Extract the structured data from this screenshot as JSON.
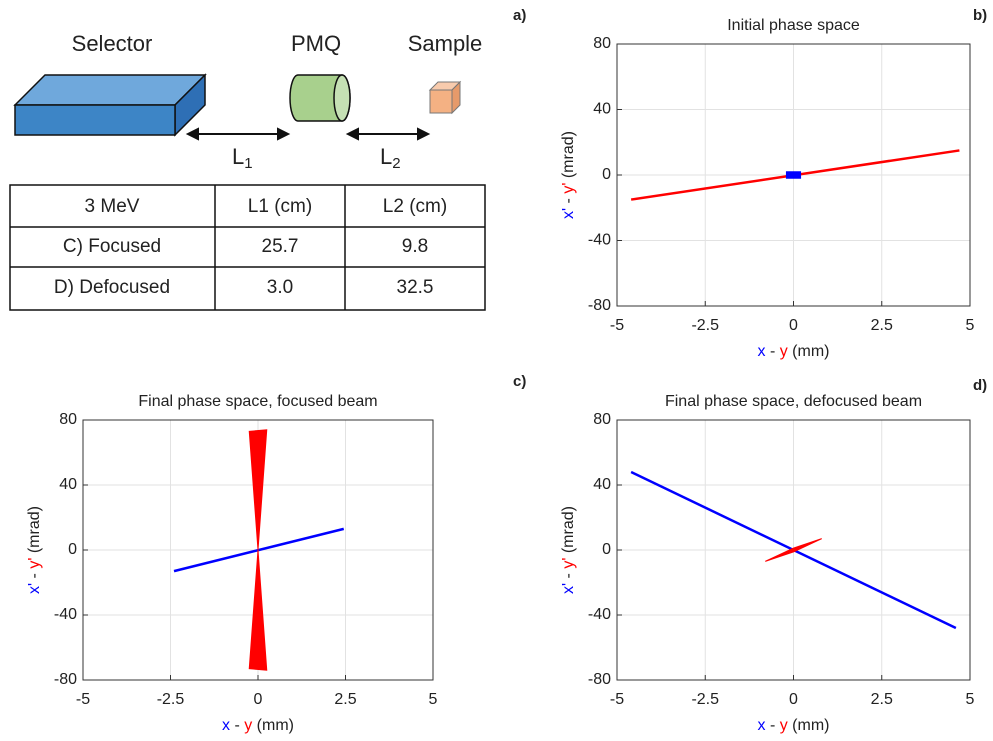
{
  "panel_labels": [
    "a)",
    "b)",
    "c)",
    "d)"
  ],
  "diagram": {
    "components": [
      "Selector",
      "PMQ",
      "Sample"
    ],
    "distances": [
      {
        "text": "L",
        "subscript": "1"
      },
      {
        "text": "L",
        "subscript": "2"
      }
    ]
  },
  "table": {
    "header": [
      "3 MeV",
      "L1 (cm)",
      "L2 (cm)"
    ],
    "rows": [
      [
        "C) Focused",
        "25.7",
        "9.8"
      ],
      [
        "D) Defocused",
        "3.0",
        "32.5"
      ]
    ]
  },
  "chart_data": [
    {
      "type": "line",
      "title": "Initial phase space",
      "xlabel": [
        {
          "text": "x",
          "color": "#0000ff"
        },
        {
          "text": " - "
        },
        {
          "text": "y",
          "color": "#ff0000"
        },
        {
          "text": " (mm)"
        }
      ],
      "ylabel": [
        {
          "text": "x'",
          "color": "#0000ff"
        },
        {
          "text": " - "
        },
        {
          "text": "y'",
          "color": "#ff0000"
        },
        {
          "text": " (mrad)"
        }
      ],
      "xlim": [
        -5,
        5
      ],
      "ylim": [
        -80,
        80
      ],
      "xticks": [
        -5,
        -2.5,
        0,
        2.5,
        5
      ],
      "yticks": [
        -80,
        -40,
        0,
        40,
        80
      ],
      "grid": true,
      "series": [
        {
          "color": "#ff0000",
          "x": [
            -4.6,
            4.7
          ],
          "y": [
            -15,
            15
          ],
          "fill": false
        },
        {
          "color": "#0000ff",
          "x": [
            -0.2,
            0.2,
            0.2,
            -0.2
          ],
          "y": [
            -2,
            -2,
            2,
            2
          ],
          "fill": true
        }
      ]
    },
    {
      "type": "line",
      "title": "Final phase space, focused beam",
      "xlabel": [
        {
          "text": "x",
          "color": "#0000ff"
        },
        {
          "text": " - "
        },
        {
          "text": "y",
          "color": "#ff0000"
        },
        {
          "text": " (mm)"
        }
      ],
      "ylabel": [
        {
          "text": "x'",
          "color": "#0000ff"
        },
        {
          "text": " - "
        },
        {
          "text": "y'",
          "color": "#ff0000"
        },
        {
          "text": " (mrad)"
        }
      ],
      "xlim": [
        -5,
        5
      ],
      "ylim": [
        -80,
        80
      ],
      "xticks": [
        -5,
        -2.5,
        0,
        2.5,
        5
      ],
      "yticks": [
        -80,
        -40,
        0,
        40,
        80
      ],
      "grid": true,
      "series": [
        {
          "color": "#0000ff",
          "x": [
            -2.4,
            2.45
          ],
          "y": [
            -13,
            13
          ],
          "fill": false
        },
        {
          "color": "#ff0000",
          "x": [
            -0.25,
            0.25,
            0,
            0.25,
            -0.25,
            0
          ],
          "y": [
            73,
            74,
            0,
            -74,
            -73,
            0
          ],
          "fill": true
        }
      ]
    },
    {
      "type": "line",
      "title": "Final phase space, defocused beam",
      "xlabel": [
        {
          "text": "x",
          "color": "#0000ff"
        },
        {
          "text": " - "
        },
        {
          "text": "y",
          "color": "#ff0000"
        },
        {
          "text": " (mm)"
        }
      ],
      "ylabel": [
        {
          "text": "x'",
          "color": "#0000ff"
        },
        {
          "text": " - "
        },
        {
          "text": "y'",
          "color": "#ff0000"
        },
        {
          "text": " (mrad)"
        }
      ],
      "xlim": [
        -5,
        5
      ],
      "ylim": [
        -80,
        80
      ],
      "xticks": [
        -5,
        -2.5,
        0,
        2.5,
        5
      ],
      "yticks": [
        -80,
        -40,
        0,
        40,
        80
      ],
      "grid": true,
      "series": [
        {
          "color": "#0000ff",
          "x": [
            -4.6,
            4.6
          ],
          "y": [
            48,
            -48
          ],
          "fill": false
        },
        {
          "color": "#ff0000",
          "x": [
            -0.8,
            0,
            0.8,
            0
          ],
          "y": [
            -7,
            -1.2,
            7,
            1.2
          ],
          "fill": true
        }
      ]
    }
  ]
}
